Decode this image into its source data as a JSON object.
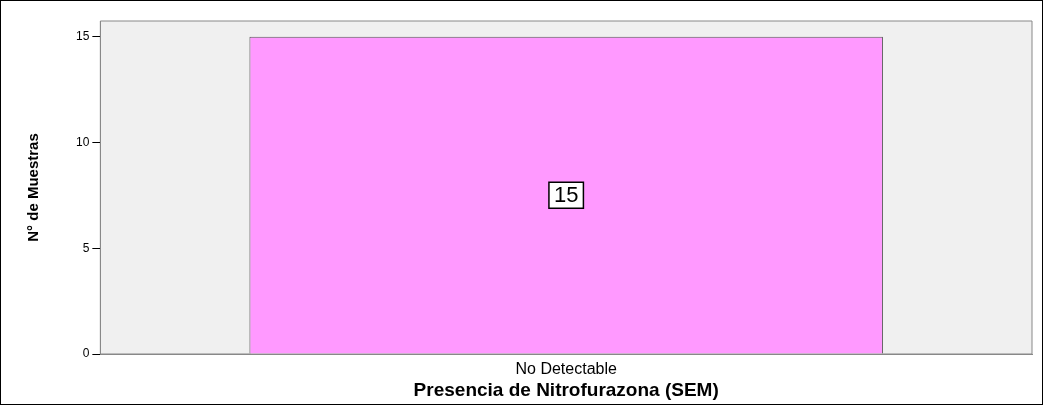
{
  "chart_data": {
    "type": "bar",
    "xlabel": "Presencia de Nitrofurazona (SEM)",
    "ylabel": "N° de Muestras",
    "categories": [
      "No Detectable"
    ],
    "values": [
      15
    ],
    "color": "#ff99ff",
    "ylim": [
      0,
      15.75
    ],
    "yticks": [
      0,
      5,
      10,
      15
    ],
    "grid": false,
    "legend": false,
    "data_labels": true
  }
}
